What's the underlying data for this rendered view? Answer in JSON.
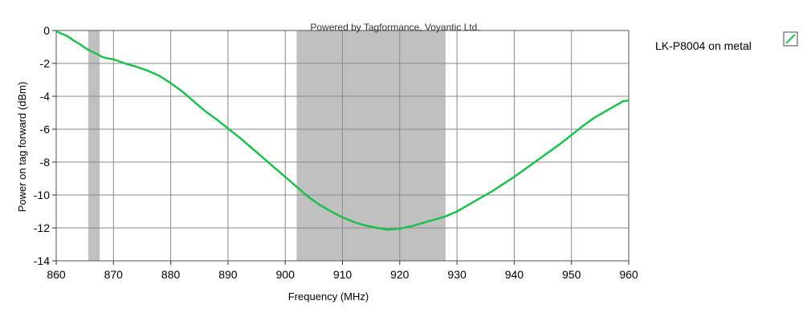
{
  "chart_data": {
    "type": "line",
    "watermark": "Powered by Tagformance, Voyantic Ltd.",
    "xlabel": "Frequency (MHz)",
    "ylabel": "Power on tag forward (dBm)",
    "xlim": [
      860,
      960
    ],
    "ylim": [
      -14,
      0
    ],
    "x_ticks": [
      860,
      870,
      880,
      890,
      900,
      910,
      920,
      930,
      940,
      950,
      960
    ],
    "y_ticks": [
      0,
      -2,
      -4,
      -6,
      -8,
      -10,
      -12,
      -14
    ],
    "grid": true,
    "legend_position": "right",
    "shaded_bands": [
      {
        "from": 865.6,
        "to": 867.6
      },
      {
        "from": 902,
        "to": 928
      }
    ],
    "band_color": "#c0c0c0",
    "series": [
      {
        "name": "LK-P8004 on metal",
        "color": "#1fbf4f",
        "x": [
          860,
          861,
          862,
          863,
          864,
          865,
          866,
          867,
          868,
          869,
          870,
          872,
          874,
          876,
          878,
          880,
          882,
          884,
          886,
          888,
          890,
          892,
          894,
          896,
          898,
          900,
          902,
          904,
          906,
          908,
          910,
          912,
          914,
          916,
          918,
          920,
          922,
          924,
          926,
          928,
          930,
          932,
          934,
          936,
          938,
          940,
          942,
          944,
          946,
          948,
          950,
          952,
          954,
          956,
          958,
          959,
          960
        ],
        "values": [
          -0.05,
          -0.2,
          -0.35,
          -0.6,
          -0.8,
          -1.05,
          -1.25,
          -1.4,
          -1.6,
          -1.7,
          -1.75,
          -2.0,
          -2.2,
          -2.45,
          -2.75,
          -3.2,
          -3.7,
          -4.3,
          -4.9,
          -5.4,
          -5.95,
          -6.5,
          -7.1,
          -7.7,
          -8.3,
          -8.9,
          -9.5,
          -10.1,
          -10.6,
          -11.0,
          -11.35,
          -11.65,
          -11.85,
          -12.0,
          -12.1,
          -12.05,
          -11.9,
          -11.7,
          -11.5,
          -11.3,
          -11.0,
          -10.6,
          -10.2,
          -9.8,
          -9.35,
          -8.9,
          -8.4,
          -7.9,
          -7.4,
          -6.9,
          -6.35,
          -5.8,
          -5.3,
          -4.9,
          -4.5,
          -4.3,
          -4.25
        ]
      }
    ]
  }
}
